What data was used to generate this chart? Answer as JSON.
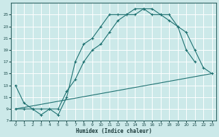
{
  "xlabel": "Humidex (Indice chaleur)",
  "xlim": [
    -0.5,
    23.5
  ],
  "ylim": [
    7,
    27
  ],
  "xticks": [
    0,
    1,
    2,
    3,
    4,
    5,
    6,
    7,
    8,
    9,
    10,
    11,
    12,
    13,
    14,
    15,
    16,
    17,
    18,
    19,
    20,
    21,
    22,
    23
  ],
  "yticks": [
    7,
    9,
    11,
    13,
    15,
    17,
    19,
    21,
    23,
    25
  ],
  "bg_color": "#cce9e9",
  "grid_color": "#b0d8d8",
  "line_color": "#1a6e6e",
  "line1_x": [
    0,
    1,
    2,
    3,
    4,
    5,
    6,
    7,
    8,
    9,
    10,
    11,
    12,
    13,
    14,
    15,
    16,
    17,
    18,
    19,
    20,
    21
  ],
  "line1_y": [
    13,
    10,
    9,
    9,
    9,
    8,
    11,
    17,
    20,
    21,
    23,
    25,
    25,
    25,
    26,
    26,
    26,
    25,
    25,
    23,
    19,
    17
  ],
  "line2_x": [
    0,
    1,
    2,
    3,
    4,
    5,
    6,
    7,
    8,
    9,
    10,
    11,
    12,
    13,
    14,
    15,
    16,
    17,
    18,
    19,
    20,
    21,
    22,
    23
  ],
  "line2_y": [
    9,
    9,
    9,
    8,
    9,
    9,
    12,
    14,
    17,
    19,
    20,
    22,
    24,
    25,
    25,
    26,
    25,
    25,
    24,
    23,
    22,
    19,
    16,
    15
  ],
  "line3_x": [
    0,
    23
  ],
  "line3_y": [
    9,
    15
  ]
}
